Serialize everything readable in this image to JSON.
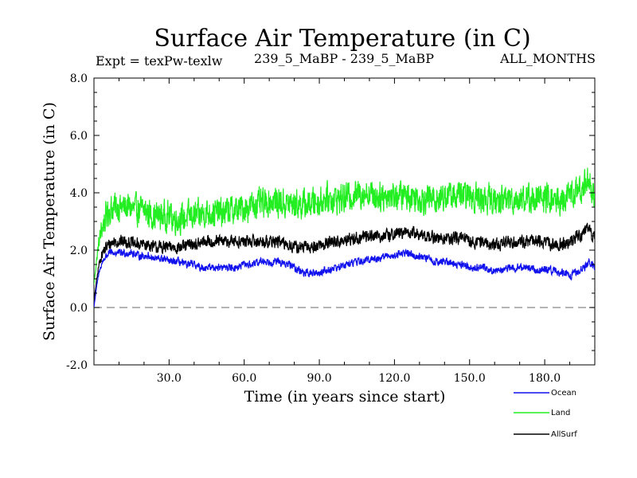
{
  "chart_data": {
    "type": "line",
    "title": "Surface Air Temperature (in C)",
    "subtitle_left": "Expt = texPw-texlw",
    "subtitle_center": "239_5_MaBP - 239_5_MaBP",
    "subtitle_right": "ALL_MONTHS",
    "xlabel": "Time (in years since start)",
    "ylabel": "Surface Air Temperature (in C)",
    "xlim": [
      0,
      200
    ],
    "ylim": [
      -2.0,
      8.0
    ],
    "x_ticks": [
      30,
      60,
      90,
      120,
      150,
      180
    ],
    "x_tick_labels": [
      "30.0",
      "60.0",
      "90.0",
      "120.0",
      "150.0",
      "180.0"
    ],
    "y_ticks": [
      -2,
      0,
      2,
      4,
      6,
      8
    ],
    "y_tick_labels": [
      "-2.0",
      "0.0",
      "2.0",
      "4.0",
      "6.0",
      "8.0"
    ],
    "reference_line": {
      "y": 0.0,
      "style": "dashed",
      "color": "#888888"
    },
    "legend_position": "bottom-right, below plot",
    "series": [
      {
        "name": "Land",
        "color": "#22ee22",
        "x": [
          0,
          1,
          2,
          3,
          4,
          5,
          6,
          8,
          10,
          12,
          14,
          16,
          18,
          20,
          22,
          24,
          26,
          28,
          30,
          32,
          34,
          36,
          38,
          40,
          42,
          44,
          46,
          48,
          50,
          52,
          54,
          56,
          58,
          60,
          62,
          64,
          66,
          68,
          70,
          72,
          74,
          76,
          78,
          80,
          82,
          84,
          86,
          88,
          90,
          92,
          94,
          96,
          98,
          100,
          102,
          104,
          106,
          108,
          110,
          112,
          114,
          116,
          118,
          120,
          122,
          124,
          126,
          128,
          130,
          132,
          134,
          136,
          138,
          140,
          142,
          144,
          146,
          148,
          150,
          152,
          154,
          156,
          158,
          160,
          162,
          164,
          166,
          168,
          170,
          172,
          174,
          176,
          178,
          180,
          182,
          184,
          186,
          188,
          190,
          192,
          194,
          196,
          197,
          198,
          199,
          200
        ],
        "values": [
          0.8,
          1.6,
          2.3,
          2.7,
          3.0,
          3.2,
          3.4,
          3.5,
          3.5,
          3.5,
          3.5,
          3.4,
          3.4,
          3.4,
          3.3,
          3.2,
          3.2,
          3.2,
          3.2,
          3.1,
          3.1,
          3.1,
          3.2,
          3.2,
          3.2,
          3.3,
          3.3,
          3.3,
          3.3,
          3.3,
          3.4,
          3.4,
          3.4,
          3.5,
          3.5,
          3.6,
          3.6,
          3.6,
          3.7,
          3.7,
          3.7,
          3.6,
          3.6,
          3.6,
          3.6,
          3.6,
          3.6,
          3.7,
          3.7,
          3.8,
          3.8,
          3.8,
          3.8,
          3.8,
          3.9,
          3.9,
          4.0,
          4.0,
          4.0,
          3.9,
          3.9,
          3.9,
          3.9,
          3.9,
          3.9,
          3.9,
          3.9,
          3.9,
          3.8,
          3.8,
          3.8,
          3.8,
          3.8,
          3.9,
          3.9,
          3.9,
          3.9,
          3.9,
          3.9,
          3.9,
          3.8,
          3.8,
          3.8,
          3.7,
          3.7,
          3.8,
          3.8,
          3.8,
          3.8,
          3.8,
          3.8,
          3.8,
          3.8,
          3.8,
          3.8,
          3.7,
          3.7,
          3.8,
          3.9,
          4.0,
          4.1,
          4.3,
          4.4,
          4.5,
          4.0,
          3.8
        ],
        "noise_amplitude": 0.7
      },
      {
        "name": "AllSurf",
        "color": "#000000",
        "x": [
          0,
          1,
          2,
          3,
          4,
          5,
          6,
          8,
          10,
          12,
          14,
          16,
          18,
          20,
          22,
          24,
          26,
          28,
          30,
          32,
          34,
          36,
          38,
          40,
          42,
          44,
          46,
          48,
          50,
          52,
          54,
          56,
          58,
          60,
          62,
          64,
          66,
          68,
          70,
          72,
          74,
          76,
          78,
          80,
          82,
          84,
          86,
          88,
          90,
          92,
          94,
          96,
          98,
          100,
          102,
          104,
          106,
          108,
          110,
          112,
          114,
          116,
          118,
          120,
          122,
          124,
          126,
          128,
          130,
          132,
          134,
          136,
          138,
          140,
          142,
          144,
          146,
          148,
          150,
          152,
          154,
          156,
          158,
          160,
          162,
          164,
          166,
          168,
          170,
          172,
          174,
          176,
          178,
          180,
          182,
          184,
          186,
          188,
          190,
          192,
          194,
          196,
          197,
          198,
          199,
          200
        ],
        "values": [
          0.2,
          0.9,
          1.5,
          1.8,
          2.0,
          2.1,
          2.2,
          2.3,
          2.3,
          2.3,
          2.3,
          2.2,
          2.2,
          2.2,
          2.2,
          2.1,
          2.1,
          2.1,
          2.1,
          2.1,
          2.1,
          2.1,
          2.2,
          2.2,
          2.2,
          2.3,
          2.3,
          2.3,
          2.3,
          2.3,
          2.3,
          2.3,
          2.3,
          2.3,
          2.3,
          2.3,
          2.3,
          2.3,
          2.3,
          2.3,
          2.3,
          2.2,
          2.2,
          2.1,
          2.1,
          2.1,
          2.1,
          2.1,
          2.2,
          2.2,
          2.3,
          2.3,
          2.3,
          2.3,
          2.4,
          2.4,
          2.4,
          2.5,
          2.5,
          2.5,
          2.5,
          2.5,
          2.5,
          2.6,
          2.6,
          2.6,
          2.6,
          2.6,
          2.5,
          2.5,
          2.5,
          2.4,
          2.4,
          2.4,
          2.4,
          2.4,
          2.4,
          2.4,
          2.3,
          2.3,
          2.3,
          2.3,
          2.2,
          2.2,
          2.2,
          2.3,
          2.3,
          2.3,
          2.3,
          2.3,
          2.3,
          2.3,
          2.3,
          2.3,
          2.2,
          2.2,
          2.2,
          2.2,
          2.3,
          2.4,
          2.5,
          2.6,
          2.7,
          2.8,
          2.5,
          2.4
        ],
        "noise_amplitude": 0.3
      },
      {
        "name": "Ocean",
        "color": "#1111ee",
        "x": [
          0,
          1,
          2,
          3,
          4,
          5,
          6,
          8,
          10,
          12,
          14,
          16,
          18,
          20,
          22,
          24,
          26,
          28,
          30,
          32,
          34,
          36,
          38,
          40,
          42,
          44,
          46,
          48,
          50,
          52,
          54,
          56,
          58,
          60,
          62,
          64,
          66,
          68,
          70,
          72,
          74,
          76,
          78,
          80,
          82,
          84,
          86,
          88,
          90,
          92,
          94,
          96,
          98,
          100,
          102,
          104,
          106,
          108,
          110,
          112,
          114,
          116,
          118,
          120,
          122,
          124,
          126,
          128,
          130,
          132,
          134,
          136,
          138,
          140,
          142,
          144,
          146,
          148,
          150,
          152,
          154,
          156,
          158,
          160,
          162,
          164,
          166,
          168,
          170,
          172,
          174,
          176,
          178,
          180,
          182,
          184,
          186,
          188,
          190,
          192,
          194,
          196,
          197,
          198,
          199,
          200
        ],
        "values": [
          0.0,
          0.7,
          1.2,
          1.5,
          1.7,
          1.8,
          1.9,
          1.9,
          1.9,
          1.9,
          1.9,
          1.9,
          1.8,
          1.8,
          1.8,
          1.7,
          1.7,
          1.7,
          1.6,
          1.6,
          1.6,
          1.5,
          1.5,
          1.5,
          1.4,
          1.4,
          1.4,
          1.4,
          1.4,
          1.4,
          1.4,
          1.4,
          1.4,
          1.5,
          1.5,
          1.5,
          1.6,
          1.6,
          1.6,
          1.6,
          1.6,
          1.5,
          1.5,
          1.4,
          1.3,
          1.2,
          1.2,
          1.2,
          1.2,
          1.3,
          1.3,
          1.4,
          1.4,
          1.5,
          1.5,
          1.6,
          1.6,
          1.6,
          1.7,
          1.7,
          1.7,
          1.8,
          1.8,
          1.8,
          1.9,
          1.9,
          1.9,
          1.8,
          1.8,
          1.7,
          1.7,
          1.6,
          1.6,
          1.6,
          1.6,
          1.5,
          1.5,
          1.5,
          1.4,
          1.4,
          1.4,
          1.4,
          1.3,
          1.3,
          1.3,
          1.3,
          1.4,
          1.4,
          1.4,
          1.4,
          1.4,
          1.3,
          1.3,
          1.3,
          1.3,
          1.3,
          1.2,
          1.2,
          1.1,
          1.2,
          1.3,
          1.4,
          1.5,
          1.6,
          1.5,
          1.4
        ],
        "noise_amplitude": 0.18
      }
    ],
    "legend": [
      {
        "name": "Ocean",
        "color": "#1111ee"
      },
      {
        "name": "Land",
        "color": "#22ee22"
      },
      {
        "name": "AllSurf",
        "color": "#000000"
      }
    ]
  }
}
